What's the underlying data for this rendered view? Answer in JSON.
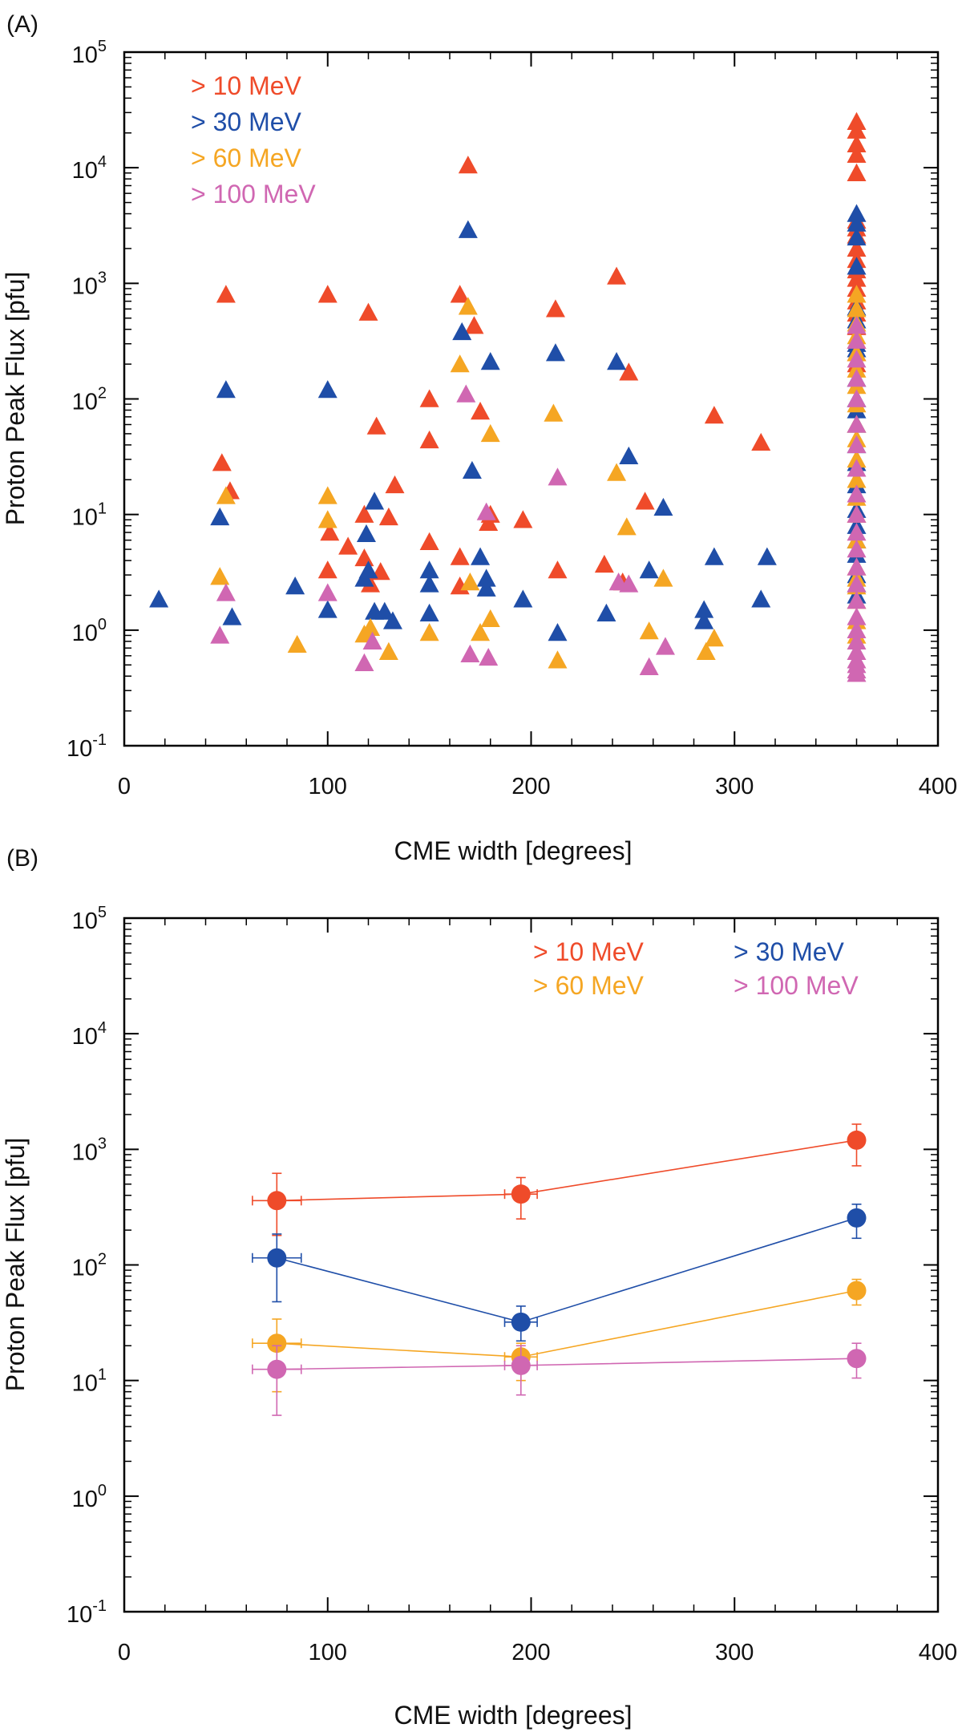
{
  "colors": {
    "gt10": "#ef4b2a",
    "gt30": "#1f4ea8",
    "gt60": "#f5a623",
    "gt100": "#d067b2",
    "axis": "#000000"
  },
  "chart_data": [
    {
      "panel_label": "(A)",
      "type": "scatter",
      "marker": "triangle",
      "xlabel": "CME width [degrees]",
      "ylabel": "Proton Peak Flux [pfu]",
      "xlim": [
        0,
        400
      ],
      "ylim": [
        0.1,
        100000
      ],
      "yscale": "log",
      "xticks": [
        "0",
        "100",
        "200",
        "300",
        "400"
      ],
      "yticks": [
        {
          "base": "10",
          "exp": "-1"
        },
        {
          "base": "10",
          "exp": "0"
        },
        {
          "base": "10",
          "exp": "1"
        },
        {
          "base": "10",
          "exp": "2"
        },
        {
          "base": "10",
          "exp": "3"
        },
        {
          "base": "10",
          "exp": "4"
        },
        {
          "base": "10",
          "exp": "5"
        }
      ],
      "legend_position": "top-left",
      "series": [
        {
          "name": "> 10 MeV",
          "color_key": "gt10",
          "points": [
            [
              48,
              28
            ],
            [
              50,
              800
            ],
            [
              52,
              16
            ],
            [
              100,
              800
            ],
            [
              101,
              7
            ],
            [
              100,
              3.3
            ],
            [
              110,
              5.3
            ],
            [
              118,
              10
            ],
            [
              118,
              4.2
            ],
            [
              120,
              560
            ],
            [
              121,
              2.5
            ],
            [
              124,
              58
            ],
            [
              126,
              3.2
            ],
            [
              130,
              9.5
            ],
            [
              133,
              18
            ],
            [
              150,
              100
            ],
            [
              150,
              44
            ],
            [
              150,
              5.8
            ],
            [
              165,
              800
            ],
            [
              165,
              4.3
            ],
            [
              165,
              2.4
            ],
            [
              169,
              10500
            ],
            [
              172,
              430
            ],
            [
              175,
              78
            ],
            [
              179,
              8.5
            ],
            [
              180,
              10
            ],
            [
              196,
              9
            ],
            [
              212,
              600
            ],
            [
              213,
              3.3
            ],
            [
              236,
              3.7
            ],
            [
              242,
              1150
            ],
            [
              248,
              170
            ],
            [
              256,
              13
            ],
            [
              290,
              72
            ],
            [
              313,
              42
            ],
            [
              245,
              2.6
            ]
          ],
          "vertical_column": {
            "x": 360,
            "values": [
              25000,
              21000,
              16000,
              13000,
              9000,
              3500,
              3000,
              2600,
              2000,
              1600,
              1300,
              1100,
              900,
              700,
              550,
              420,
              320,
              250,
              200
            ]
          }
        },
        {
          "name": "> 30 MeV",
          "color_key": "gt30",
          "points": [
            [
              17,
              1.85
            ],
            [
              47,
              9.5
            ],
            [
              50,
              120
            ],
            [
              53,
              1.3
            ],
            [
              84,
              2.4
            ],
            [
              100,
              120
            ],
            [
              100,
              1.5
            ],
            [
              118,
              2.8
            ],
            [
              119,
              6.8
            ],
            [
              120,
              3.3
            ],
            [
              123,
              13
            ],
            [
              123,
              1.45
            ],
            [
              128,
              1.45
            ],
            [
              132,
              1.2
            ],
            [
              150,
              3.3
            ],
            [
              150,
              2.5
            ],
            [
              150,
              1.4
            ],
            [
              166,
              380
            ],
            [
              169,
              2900
            ],
            [
              171,
              24
            ],
            [
              175,
              4.3
            ],
            [
              178,
              2.8
            ],
            [
              178,
              2.3
            ],
            [
              180,
              210
            ],
            [
              196,
              1.85
            ],
            [
              212,
              250
            ],
            [
              213,
              0.95
            ],
            [
              237,
              1.4
            ],
            [
              242,
              210
            ],
            [
              248,
              32
            ],
            [
              258,
              3.3
            ],
            [
              265,
              11.5
            ],
            [
              285,
              1.5
            ],
            [
              285,
              1.2
            ],
            [
              290,
              4.3
            ],
            [
              313,
              1.85
            ],
            [
              316,
              4.3
            ]
          ],
          "vertical_column": {
            "x": 360,
            "values": [
              4000,
              3300,
              2500,
              1400,
              620,
              480,
              300,
              270,
              150,
              100,
              80,
              60,
              40,
              28,
              18,
              11,
              8,
              6,
              4.5,
              3,
              2.5,
              2
            ]
          }
        },
        {
          "name": "> 60 MeV",
          "color_key": "gt60",
          "points": [
            [
              47,
              2.9
            ],
            [
              50,
              14.5
            ],
            [
              85,
              0.75
            ],
            [
              100,
              14.5
            ],
            [
              100,
              9
            ],
            [
              118,
              0.92
            ],
            [
              121,
              1.05
            ],
            [
              130,
              0.65
            ],
            [
              150,
              0.95
            ],
            [
              165,
              200
            ],
            [
              169,
              630
            ],
            [
              170,
              2.6
            ],
            [
              175,
              0.95
            ],
            [
              180,
              1.25
            ],
            [
              180,
              50
            ],
            [
              211,
              75
            ],
            [
              213,
              0.55
            ],
            [
              242,
              23
            ],
            [
              247,
              7.8
            ],
            [
              258,
              0.98
            ],
            [
              265,
              2.8
            ],
            [
              286,
              0.65
            ],
            [
              290,
              0.85
            ]
          ],
          "vertical_column": {
            "x": 360,
            "values": [
              800,
              600,
              450,
              350,
              250,
              180,
              130,
              90,
              60,
              45,
              30,
              20,
              14,
              10,
              6,
              3.5,
              2.8,
              2.4,
              1.8,
              1.2,
              0.9
            ]
          }
        },
        {
          "name": "> 100 MeV",
          "color_key": "gt100",
          "points": [
            [
              47,
              0.9
            ],
            [
              50,
              2.1
            ],
            [
              100,
              2.1
            ],
            [
              118,
              0.52
            ],
            [
              122,
              0.8
            ],
            [
              168,
              110
            ],
            [
              170,
              0.62
            ],
            [
              178,
              10.5
            ],
            [
              179,
              0.58
            ],
            [
              213,
              21
            ],
            [
              243,
              2.6
            ],
            [
              248,
              2.5
            ],
            [
              258,
              0.48
            ],
            [
              266,
              0.72
            ]
          ],
          "vertical_column": {
            "x": 360,
            "values": [
              430,
              320,
              220,
              150,
              100,
              60,
              40,
              25,
              15,
              10,
              7,
              5,
              3.5,
              2.5,
              1.8,
              1.3,
              1,
              0.8,
              0.65,
              0.55,
              0.5,
              0.45,
              0.42
            ]
          }
        }
      ]
    },
    {
      "panel_label": "(B)",
      "type": "line",
      "marker": "circle",
      "xlabel": "CME width [degrees]",
      "ylabel": "Proton Peak Flux [pfu]",
      "xlim": [
        0,
        400
      ],
      "ylim": [
        0.1,
        100000
      ],
      "yscale": "log",
      "xticks": [
        "0",
        "100",
        "200",
        "300",
        "400"
      ],
      "yticks": [
        {
          "base": "10",
          "exp": "-1"
        },
        {
          "base": "10",
          "exp": "0"
        },
        {
          "base": "10",
          "exp": "1"
        },
        {
          "base": "10",
          "exp": "2"
        },
        {
          "base": "10",
          "exp": "3"
        },
        {
          "base": "10",
          "exp": "4"
        },
        {
          "base": "10",
          "exp": "5"
        }
      ],
      "legend_position": "top-right",
      "series": [
        {
          "name": "> 10 MeV",
          "color_key": "gt10",
          "x": [
            75,
            195,
            360
          ],
          "values": [
            360,
            410,
            1200
          ],
          "yerr_low": [
            180,
            250,
            720
          ],
          "yerr_high": [
            620,
            570,
            1650
          ],
          "xerr": [
            12,
            8,
            0
          ]
        },
        {
          "name": "> 30 MeV",
          "color_key": "gt30",
          "x": [
            75,
            195,
            360
          ],
          "values": [
            115,
            32,
            255
          ],
          "yerr_low": [
            48,
            22,
            170
          ],
          "yerr_high": [
            185,
            44,
            335
          ],
          "xerr": [
            12,
            8,
            0
          ]
        },
        {
          "name": "> 60 MeV",
          "color_key": "gt60",
          "x": [
            75,
            195,
            360
          ],
          "values": [
            21,
            16,
            60
          ],
          "yerr_low": [
            8,
            10,
            45
          ],
          "yerr_high": [
            34,
            21,
            75
          ],
          "xerr": [
            12,
            8,
            0
          ]
        },
        {
          "name": "> 100 MeV",
          "color_key": "gt100",
          "x": [
            75,
            195,
            360
          ],
          "values": [
            12.5,
            13.5,
            15.5
          ],
          "yerr_low": [
            5,
            7.5,
            10.5
          ],
          "yerr_high": [
            20,
            20,
            21
          ],
          "xerr": [
            12,
            8,
            0
          ]
        }
      ]
    }
  ]
}
